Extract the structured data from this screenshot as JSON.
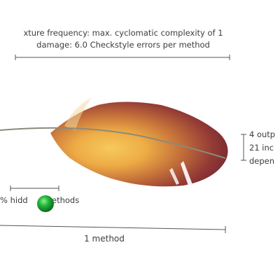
{
  "annotations": {
    "top_line1": "xture frequency: max. cyclomatic complexity of 1",
    "top_line2": "damage: 6.0 Checkstyle errors per method",
    "right_line1": "4 outp",
    "right_line2": "21 inc",
    "right_line3": "depen",
    "hidden_left": "% hidd",
    "hidden_right": "ethods",
    "bottom_label": "1 method"
  },
  "colors": {
    "feather_base": "#7a2a2e",
    "feather_glow": "#f0b445",
    "shaft": "#8a8a7a",
    "marker": "#22b33a",
    "lines": "#555555"
  },
  "icons": {
    "feather": "feather-icon",
    "marker": "green-dot-icon"
  }
}
